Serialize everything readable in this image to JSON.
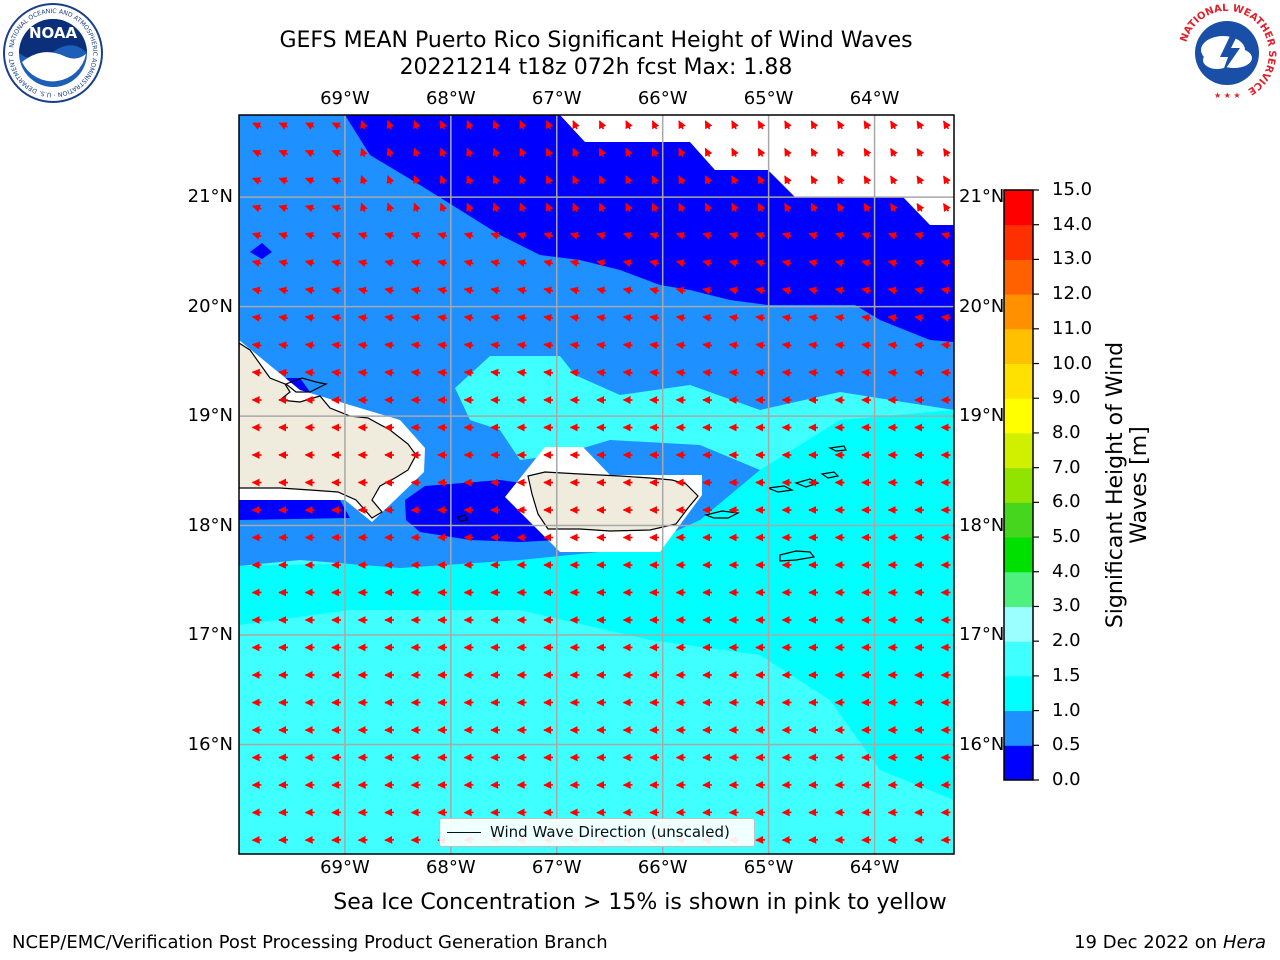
{
  "title": {
    "line1": "GEFS MEAN Puerto Rico Significant Height of Wind Waves",
    "line2": "20221214 t18z 072h fcst   Max: 1.88"
  },
  "logos": {
    "left": {
      "text": "NOAA",
      "icon": "noaa-logo-icon",
      "ring_text": "NATIONAL OCEANIC AND ATMOSPHERIC ADMINISTRATION · U.S. DEPARTMENT OF COMMERCE"
    },
    "right": {
      "icon": "nws-logo-icon",
      "ring_text": "NATIONAL WEATHER SERVICE"
    }
  },
  "map": {
    "lon_labels": [
      "69°W",
      "68°W",
      "67°W",
      "66°W",
      "65°W",
      "64°W"
    ],
    "lat_labels": [
      "21°N",
      "20°N",
      "19°N",
      "18°N",
      "17°N",
      "16°N"
    ],
    "lon_range": [
      -70.0,
      -63.25
    ],
    "lat_range": [
      15.0,
      21.75
    ],
    "grid": true,
    "land_color": "#efebdd",
    "arrow_color": "#ff0000",
    "legend": {
      "label": "Wind Wave Direction (unscaled)",
      "placement": "lower-center"
    }
  },
  "colorbar": {
    "label": "Significant Height of Wind Waves [m]",
    "label_line1": "Significant Height of Wind",
    "label_line2": "Waves [m]",
    "ticks": [
      "0.0",
      "0.5",
      "1.0",
      "1.5",
      "2.0",
      "3.0",
      "4.0",
      "5.0",
      "6.0",
      "7.0",
      "8.0",
      "9.0",
      "10.0",
      "11.0",
      "12.0",
      "13.0",
      "14.0",
      "15.0"
    ],
    "colors": [
      "#0000ff",
      "#1e90ff",
      "#00ffff",
      "#40ffff",
      "#9bffff",
      "#4ef07e",
      "#00e000",
      "#46d61e",
      "#90e400",
      "#d0f000",
      "#ffff00",
      "#ffe100",
      "#ffc000",
      "#ff9000",
      "#ff6000",
      "#ff3000",
      "#ff0000"
    ]
  },
  "note": "Sea Ice Concentration > 15% is shown in pink to yellow",
  "footer": {
    "left": "NCEP/EMC/Verification Post Processing Product Generation Branch",
    "right_prefix": "19 Dec 2022 on",
    "right_host": "Hera"
  }
}
